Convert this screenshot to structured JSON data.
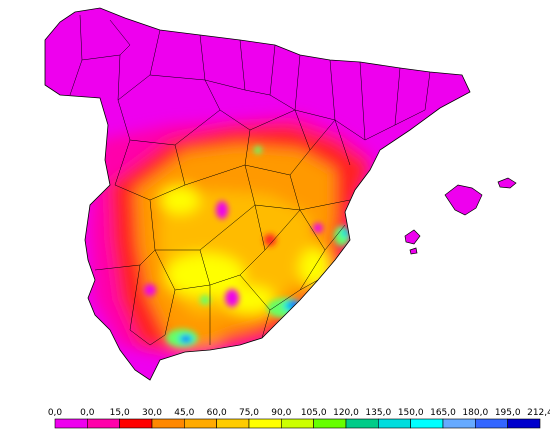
{
  "map": {
    "palette": {
      "magenta": "#ee00ee",
      "pink": "#ff00aa",
      "red": "#ff2020",
      "orange": "#ff9900",
      "light-orange": "#ffbb00",
      "yellow": "#ffff00",
      "yellow-green": "#ccff33",
      "green": "#66ff66",
      "teal": "#00d0b0",
      "cyan": "#00e0e0",
      "light-blue": "#66aaff",
      "blue": "#2255ff",
      "dark-blue": "#0000cc"
    },
    "border_color": "#000000"
  },
  "legend": {
    "labels": [
      "0,0",
      "0,0",
      "15,0",
      "30,0",
      "45,0",
      "60,0",
      "75,0",
      "90,0",
      "105,0",
      "120,0",
      "135,0",
      "150,0",
      "165,0",
      "180,0",
      "195,0",
      "212,4"
    ],
    "colors": [
      "#ee00ee",
      "#ff00aa",
      "#ff0000",
      "#ff8800",
      "#ffaa00",
      "#ffcc00",
      "#ffff00",
      "#ccff00",
      "#66ff00",
      "#00cc88",
      "#00dddd",
      "#00ffff",
      "#66aaff",
      "#3366ff",
      "#0000cc"
    ]
  }
}
